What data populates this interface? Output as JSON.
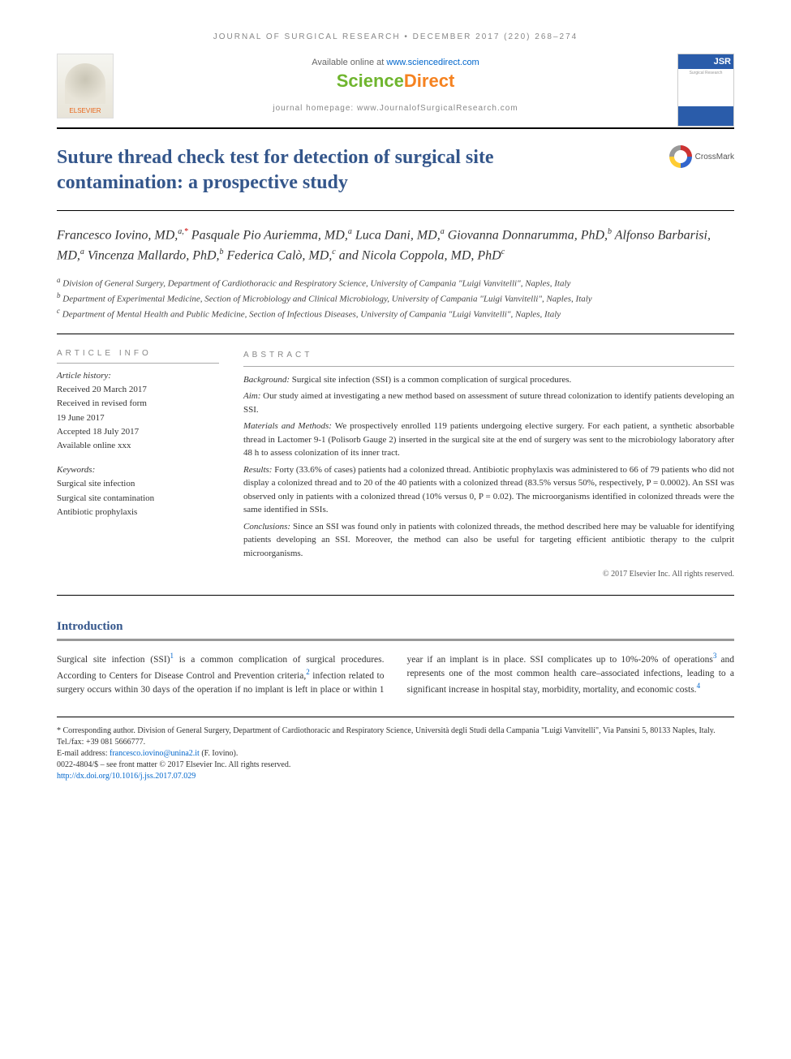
{
  "running_header": "JOURNAL OF SURGICAL RESEARCH • DECEMBER 2017 (220) 268–274",
  "available_text": "Available online at ",
  "available_link": "www.sciencedirect.com",
  "sciencedirect": {
    "part1": "Science",
    "part2": "Direct"
  },
  "elsevier_label": "ELSEVIER",
  "journal_cover": {
    "brand": "JSR",
    "sub": "Surgical Research"
  },
  "journal_homepage": "journal homepage: www.JournalofSurgicalResearch.com",
  "title": "Suture thread check test for detection of surgical site contamination: a prospective study",
  "crossmark_label": "CrossMark",
  "authors_html": "Francesco Iovino, MD,<span class='aff'>a,</span><span class='aff corr'>*</span> Pasquale Pio Auriemma, MD,<span class='aff'>a</span> Luca Dani, MD,<span class='aff'>a</span> Giovanna Donnarumma, PhD,<span class='aff'>b</span> Alfonso Barbarisi, MD,<span class='aff'>a</span> Vincenza Mallardo, PhD,<span class='aff'>b</span> Federica Calò, MD,<span class='aff'>c</span> and Nicola Coppola, MD, PhD<span class='aff'>c</span>",
  "affiliations": [
    {
      "label": "a",
      "text": "Division of General Surgery, Department of Cardiothoracic and Respiratory Science, University of Campania \"Luigi Vanvitelli\", Naples, Italy"
    },
    {
      "label": "b",
      "text": "Department of Experimental Medicine, Section of Microbiology and Clinical Microbiology, University of Campania \"Luigi Vanvitelli\", Naples, Italy"
    },
    {
      "label": "c",
      "text": "Department of Mental Health and Public Medicine, Section of Infectious Diseases, University of Campania \"Luigi Vanvitelli\", Naples, Italy"
    }
  ],
  "article_info": {
    "heading": "ARTICLE INFO",
    "history_label": "Article history:",
    "received": "Received 20 March 2017",
    "revised1": "Received in revised form",
    "revised2": "19 June 2017",
    "accepted": "Accepted 18 July 2017",
    "online": "Available online xxx",
    "keywords_label": "Keywords:",
    "keywords": [
      "Surgical site infection",
      "Surgical site contamination",
      "Antibiotic prophylaxis"
    ]
  },
  "abstract": {
    "heading": "ABSTRACT",
    "sections": [
      {
        "label": "Background:",
        "text": " Surgical site infection (SSI) is a common complication of surgical procedures."
      },
      {
        "label": "Aim:",
        "text": " Our study aimed at investigating a new method based on assessment of suture thread colonization to identify patients developing an SSI."
      },
      {
        "label": "Materials and Methods:",
        "text": " We prospectively enrolled 119 patients undergoing elective surgery. For each patient, a synthetic absorbable thread in Lactomer 9-1 (Polisorb Gauge 2) inserted in the surgical site at the end of surgery was sent to the microbiology laboratory after 48 h to assess colonization of its inner tract."
      },
      {
        "label": "Results:",
        "text": " Forty (33.6% of cases) patients had a colonized thread. Antibiotic prophylaxis was administered to 66 of 79 patients who did not display a colonized thread and to 20 of the 40 patients with a colonized thread (83.5% versus 50%, respectively, P = 0.0002). An SSI was observed only in patients with a colonized thread (10% versus 0, P = 0.02). The microorganisms identified in colonized threads were the same identified in SSIs."
      },
      {
        "label": "Conclusions:",
        "text": " Since an SSI was found only in patients with colonized threads, the method described here may be valuable for identifying patients developing an SSI. Moreover, the method can also be useful for targeting efficient antibiotic therapy to the culprit microorganisms."
      }
    ],
    "copyright": "© 2017 Elsevier Inc. All rights reserved."
  },
  "intro_heading": "Introduction",
  "intro_body_html": "Surgical site infection (SSI)<span class='ref'>1</span> is a common complication of surgical procedures. According to Centers for Disease Control and Prevention criteria,<span class='ref'>2</span> infection related to surgery occurs within 30 days of the operation if no implant is left in place or within 1 year if an implant is in place. SSI complicates up to 10%-20% of operations<span class='ref'>3</span> and represents one of the most common health care–associated infections, leading to a significant increase in hospital stay, morbidity, mortality, and economic costs.<span class='ref'>4</span>",
  "footer": {
    "corresponding": "* Corresponding author. Division of General Surgery, Department of Cardiothoracic and Respiratory Science, Università degli Studi della Campania \"Luigi Vanvitelli\", Via Pansini 5, 80133 Naples, Italy. Tel./fax: +39 081 5666777.",
    "email_label": "E-mail address: ",
    "email": "francesco.iovino@unina2.it",
    "email_suffix": " (F. Iovino).",
    "issn": "0022-4804/$ – see front matter © 2017 Elsevier Inc. All rights reserved.",
    "doi": "http://dx.doi.org/10.1016/j.jss.2017.07.029"
  },
  "colors": {
    "title_color": "#34568b",
    "link_color": "#0066cc",
    "sd_green": "#6fb52e",
    "sd_orange": "#f58220",
    "elsevier_orange": "#e8661b",
    "jsr_blue": "#2a5caa"
  },
  "typography": {
    "body_font": "Georgia, serif",
    "sans_font": "Arial, sans-serif",
    "title_pt": 24,
    "authors_pt": 16,
    "body_pt": 11.5,
    "abstract_pt": 11,
    "footer_pt": 10
  }
}
